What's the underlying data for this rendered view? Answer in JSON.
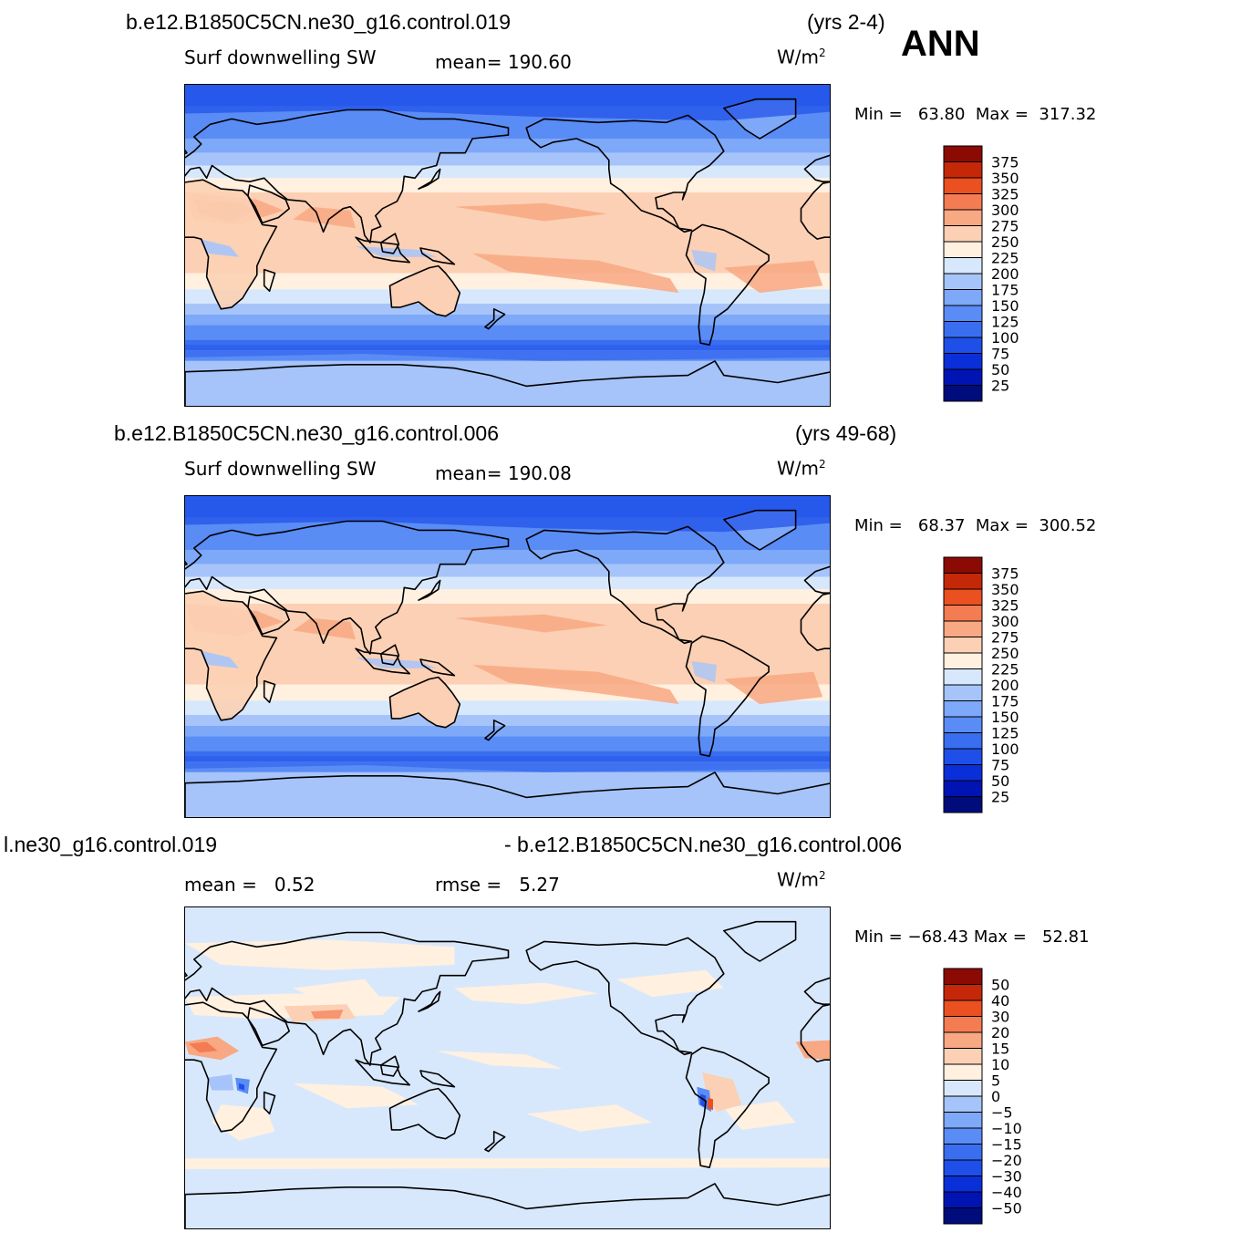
{
  "panels": [
    {
      "case": "b.e12.B1850C5CN.ne30_g16.control.019",
      "years": "(yrs 2-4)",
      "variable": "Surf downwelling SW",
      "stat1_label": "mean=",
      "stat1_value": "190.60",
      "units": "W/m",
      "units_exp": "2",
      "min_label": "Min =",
      "min_value": "63.80",
      "max_label": "Max =",
      "max_value": "317.32",
      "map_style": "abs"
    },
    {
      "case": "b.e12.B1850C5CN.ne30_g16.control.006",
      "years": "(yrs 49-68)",
      "variable": "Surf downwelling SW",
      "stat1_label": "mean=",
      "stat1_value": "190.08",
      "units": "W/m",
      "units_exp": "2",
      "min_label": "Min =",
      "min_value": "68.37",
      "max_label": "Max =",
      "max_value": "300.52",
      "map_style": "abs"
    },
    {
      "case_left": "l.ne30_g16.control.019",
      "case_right": "- b.e12.B1850C5CN.ne30_g16.control.006",
      "stat1_label": "mean =",
      "stat1_value": "0.52",
      "stat2_label": "rmse =",
      "stat2_value": "5.27",
      "units": "W/m",
      "units_exp": "2",
      "min_label": "Min =",
      "min_value": "−68.43",
      "max_label": "Max =",
      "max_value": "52.81",
      "map_style": "diff"
    }
  ],
  "season": "ANN",
  "chart_data": [
    {
      "type": "heatmap",
      "title": "b.e12.B1850C5CN.ne30_g16.control.019 (yrs 2-4) Surf downwelling SW",
      "units": "W/m2",
      "mean": 190.6,
      "min": 63.8,
      "max": 317.32,
      "colorbar_levels": [
        25,
        50,
        75,
        100,
        125,
        150,
        175,
        200,
        225,
        250,
        275,
        300,
        325,
        350,
        375
      ],
      "colorbar_colors": [
        "#000b7c",
        "#0014b4",
        "#0a2fd8",
        "#1e4fe8",
        "#3a6ef0",
        "#5a8cf6",
        "#7ea8f8",
        "#a6c4fa",
        "#d8e8fc",
        "#fff0e0",
        "#fcd0b4",
        "#f8a882",
        "#f47c52",
        "#ea5020",
        "#c42808",
        "#8c0a04"
      ]
    },
    {
      "type": "heatmap",
      "title": "b.e12.B1850C5CN.ne30_g16.control.006 (yrs 49-68) Surf downwelling SW",
      "units": "W/m2",
      "mean": 190.08,
      "min": 68.37,
      "max": 300.52,
      "colorbar_levels": [
        25,
        50,
        75,
        100,
        125,
        150,
        175,
        200,
        225,
        250,
        275,
        300,
        325,
        350,
        375
      ],
      "colorbar_colors": [
        "#000b7c",
        "#0014b4",
        "#0a2fd8",
        "#1e4fe8",
        "#3a6ef0",
        "#5a8cf6",
        "#7ea8f8",
        "#a6c4fa",
        "#d8e8fc",
        "#fff0e0",
        "#fcd0b4",
        "#f8a882",
        "#f47c52",
        "#ea5020",
        "#c42808",
        "#8c0a04"
      ]
    },
    {
      "type": "heatmap",
      "title": "l.ne30_g16.control.019 - b.e12.B1850C5CN.ne30_g16.control.006",
      "units": "W/m2",
      "mean": 0.52,
      "rmse": 5.27,
      "min": -68.43,
      "max": 52.81,
      "colorbar_levels": [
        -50,
        -40,
        -30,
        -20,
        -15,
        -10,
        -5,
        0,
        5,
        10,
        15,
        20,
        30,
        40,
        50
      ],
      "colorbar_colors": [
        "#000b7c",
        "#0014b4",
        "#0a2fd8",
        "#1e4fe8",
        "#3a6ef0",
        "#5a8cf6",
        "#7ea8f8",
        "#a6c4fa",
        "#d8e8fc",
        "#fff0e0",
        "#fcd0b4",
        "#f8a882",
        "#f47c52",
        "#ea5020",
        "#c42808",
        "#8c0a04"
      ]
    }
  ]
}
